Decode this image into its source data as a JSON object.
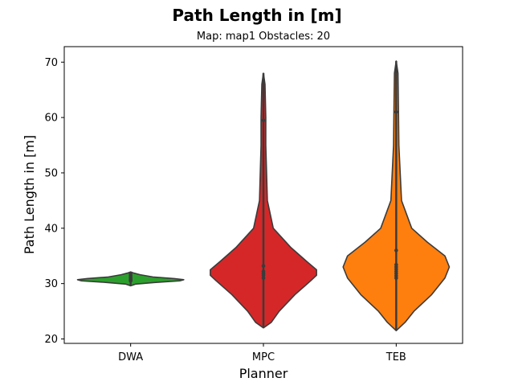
{
  "chart_data": {
    "type": "violin",
    "title": "Path Length in [m]",
    "subtitle": "Map: map1 Obstacles: 20",
    "xlabel": "Planner",
    "ylabel": "Path Length in [m]",
    "ylim": [
      19.2,
      72.8
    ],
    "yticks": [
      20,
      30,
      40,
      50,
      60,
      70
    ],
    "ytick_labels": [
      "20",
      "30",
      "40",
      "50",
      "60",
      "70"
    ],
    "grid": false,
    "categories": [
      "DWA",
      "MPC",
      "TEB"
    ],
    "colors": [
      "#2ca02c",
      "#d62728",
      "#ff7f0e"
    ],
    "series": [
      {
        "name": "DWA",
        "color": "#2ca02c",
        "range": [
          29.6,
          32.1
        ],
        "profile": [
          [
            29.6,
            0.0
          ],
          [
            29.9,
            0.06
          ],
          [
            30.2,
            0.3
          ],
          [
            30.5,
            0.62
          ],
          [
            30.7,
            0.67
          ],
          [
            30.9,
            0.55
          ],
          [
            31.2,
            0.28
          ],
          [
            31.6,
            0.12
          ],
          [
            31.9,
            0.04
          ],
          [
            32.1,
            0.0
          ]
        ],
        "points": [
          30.5,
          30.6,
          30.8,
          31.0,
          31.2,
          31.5,
          31.8
        ]
      },
      {
        "name": "MPC",
        "color": "#d62728",
        "range": [
          22.0,
          68.0
        ],
        "profile": [
          [
            22.0,
            0.0
          ],
          [
            23.0,
            0.02
          ],
          [
            25.0,
            0.04
          ],
          [
            28.0,
            0.08
          ],
          [
            30.5,
            0.12
          ],
          [
            31.5,
            0.135
          ],
          [
            32.5,
            0.135
          ],
          [
            34.0,
            0.11
          ],
          [
            36.5,
            0.07
          ],
          [
            40.0,
            0.025
          ],
          [
            45.0,
            0.01
          ],
          [
            55.0,
            0.006
          ],
          [
            60.0,
            0.006
          ],
          [
            66.0,
            0.004
          ],
          [
            68.0,
            0.0
          ]
        ],
        "points": [
          31.0,
          31.5,
          31.8,
          32.2,
          33.2,
          59.5
        ]
      },
      {
        "name": "TEB",
        "color": "#ff7f0e",
        "range": [
          21.5,
          70.2
        ],
        "profile": [
          [
            21.5,
            0.0
          ],
          [
            23.0,
            0.02
          ],
          [
            25.0,
            0.04
          ],
          [
            28.0,
            0.08
          ],
          [
            31.0,
            0.11
          ],
          [
            33.0,
            0.12
          ],
          [
            35.0,
            0.11
          ],
          [
            37.5,
            0.07
          ],
          [
            40.0,
            0.035
          ],
          [
            45.0,
            0.012
          ],
          [
            55.0,
            0.006
          ],
          [
            62.0,
            0.005
          ],
          [
            68.0,
            0.004
          ],
          [
            70.2,
            0.0
          ]
        ],
        "points": [
          31.0,
          31.4,
          31.8,
          32.2,
          32.6,
          33.0,
          33.4,
          36.0,
          61.0
        ]
      }
    ]
  }
}
